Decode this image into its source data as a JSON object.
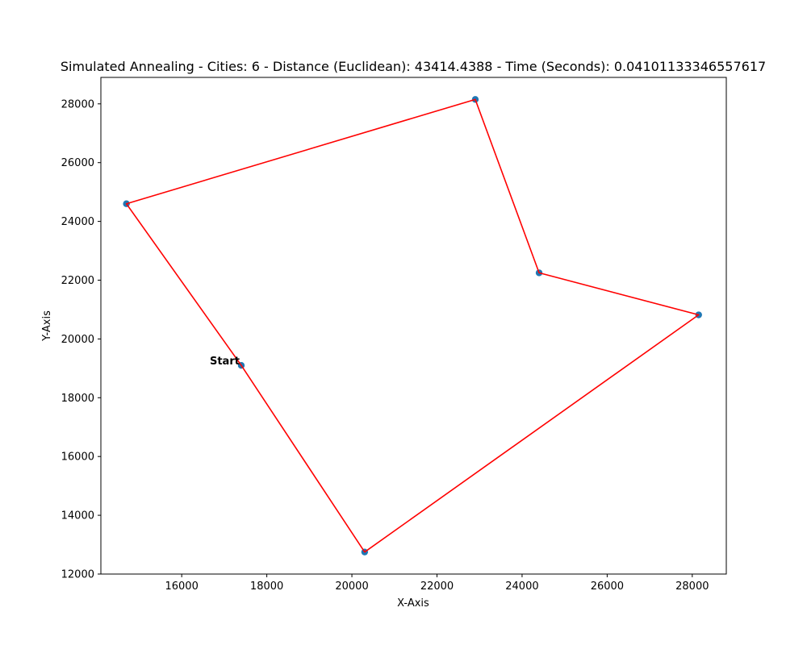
{
  "chart_data": {
    "type": "scatter",
    "title": "Simulated Annealing - Cities: 6 - Distance (Euclidean): 43414.4388 - Time (Seconds): 0.04101133346557617",
    "xlabel": "X-Axis",
    "ylabel": "Y-Axis",
    "xlim": [
      14100,
      28800
    ],
    "ylim": [
      12000,
      28900
    ],
    "xticks": [
      16000,
      18000,
      20000,
      22000,
      24000,
      26000,
      28000
    ],
    "yticks": [
      12000,
      14000,
      16000,
      18000,
      20000,
      22000,
      24000,
      26000,
      28000
    ],
    "grid": false,
    "series": [
      {
        "points": [
          {
            "x": 17400,
            "y": 19100
          },
          {
            "x": 14700,
            "y": 24600
          },
          {
            "x": 22900,
            "y": 28150
          },
          {
            "x": 24400,
            "y": 22250
          },
          {
            "x": 28150,
            "y": 20820
          },
          {
            "x": 20300,
            "y": 12750
          }
        ]
      }
    ],
    "route_order": [
      0,
      1,
      2,
      3,
      4,
      5,
      0
    ],
    "annotations": [
      {
        "text": "Start",
        "point_index": 0
      }
    ],
    "colors": {
      "points": "#1f77b4",
      "route": "#ff0000"
    }
  }
}
